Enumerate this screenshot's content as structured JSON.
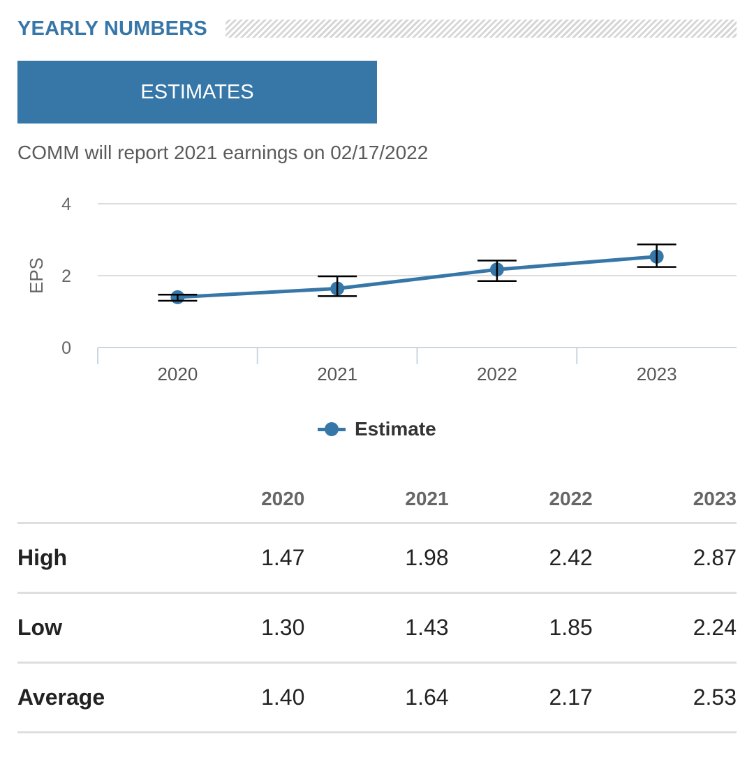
{
  "section": {
    "title": "YEARLY NUMBERS"
  },
  "tabs": [
    {
      "label": "ESTIMATES",
      "active": true
    }
  ],
  "report_note": "COMM will report 2021 earnings on 02/17/2022",
  "colors": {
    "accent": "#3777a8",
    "errorbar": "#000000",
    "grid": "#dcdcdc",
    "axis": "#c9d6e3"
  },
  "chart_data": {
    "type": "line",
    "title": "",
    "xlabel": "",
    "ylabel": "EPS",
    "categories": [
      "2020",
      "2021",
      "2022",
      "2023"
    ],
    "ylim": [
      0,
      4
    ],
    "yticks": [
      "0",
      "2",
      "4"
    ],
    "grid": true,
    "legend": "bottom-center",
    "series": [
      {
        "name": "Estimate",
        "values": [
          1.4,
          1.64,
          2.17,
          2.53
        ],
        "error_high": [
          1.47,
          1.98,
          2.42,
          2.87
        ],
        "error_low": [
          1.3,
          1.43,
          1.85,
          2.24
        ]
      }
    ]
  },
  "table": {
    "headers": [
      "",
      "2020",
      "2021",
      "2022",
      "2023"
    ],
    "rows": [
      {
        "label": "High",
        "values": [
          "1.47",
          "1.98",
          "2.42",
          "2.87"
        ]
      },
      {
        "label": "Low",
        "values": [
          "1.30",
          "1.43",
          "1.85",
          "2.24"
        ]
      },
      {
        "label": "Average",
        "values": [
          "1.40",
          "1.64",
          "2.17",
          "2.53"
        ]
      }
    ]
  }
}
